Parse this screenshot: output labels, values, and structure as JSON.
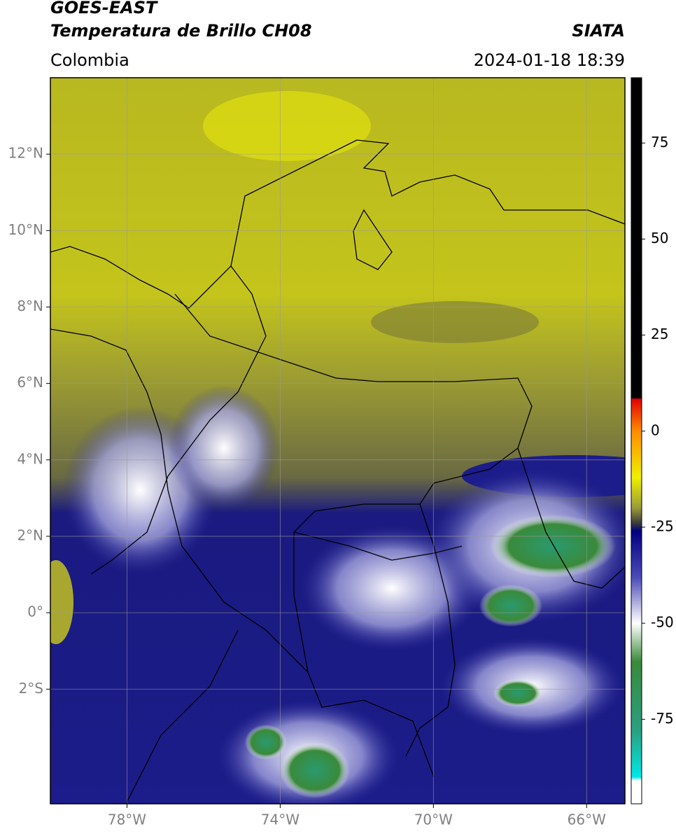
{
  "header": {
    "title_line1": "GOES-EAST",
    "title_line2": "Temperatura de Brillo CH08",
    "agency": "SIATA",
    "region": "Colombia",
    "timestamp": "2024-01-18 18:39"
  },
  "map": {
    "lon_range": [
      -80,
      -65
    ],
    "lat_range": [
      -5,
      14
    ],
    "lon_ticks": [
      {
        "value": -78,
        "label": "78°W"
      },
      {
        "value": -74,
        "label": "74°W"
      },
      {
        "value": -70,
        "label": "70°W"
      },
      {
        "value": -66,
        "label": "66°W"
      }
    ],
    "lat_ticks": [
      {
        "value": 12,
        "label": "12°N"
      },
      {
        "value": 10,
        "label": "10°N"
      },
      {
        "value": 8,
        "label": "8°N"
      },
      {
        "value": 6,
        "label": "6°N"
      },
      {
        "value": 4,
        "label": "4°N"
      },
      {
        "value": 2,
        "label": "2°N"
      },
      {
        "value": 0,
        "label": "0°"
      },
      {
        "value": -2,
        "label": "2°S"
      }
    ],
    "grid": true
  },
  "colorbar": {
    "range": [
      -97,
      92
    ],
    "ticks": [
      75,
      50,
      25,
      0,
      -25,
      -50,
      -75
    ],
    "stops": [
      {
        "value": 92,
        "color": "#000000"
      },
      {
        "value": 8.6,
        "color": "#000000"
      },
      {
        "value": 8.4,
        "color": "#e00000"
      },
      {
        "value": 0,
        "color": "#ff8c00"
      },
      {
        "value": -12,
        "color": "#f0f000"
      },
      {
        "value": -20,
        "color": "#9a9a3a"
      },
      {
        "value": -24,
        "color": "#3a3a3a"
      },
      {
        "value": -26,
        "color": "#000080"
      },
      {
        "value": -38,
        "color": "#4a4ab8"
      },
      {
        "value": -50,
        "color": "#ffffff"
      },
      {
        "value": -60,
        "color": "#3a8a3a"
      },
      {
        "value": -78,
        "color": "#2aa080"
      },
      {
        "value": -90,
        "color": "#00e8e8"
      },
      {
        "value": -91,
        "color": "#ffffff"
      },
      {
        "value": -97,
        "color": "#ffffff"
      }
    ]
  }
}
